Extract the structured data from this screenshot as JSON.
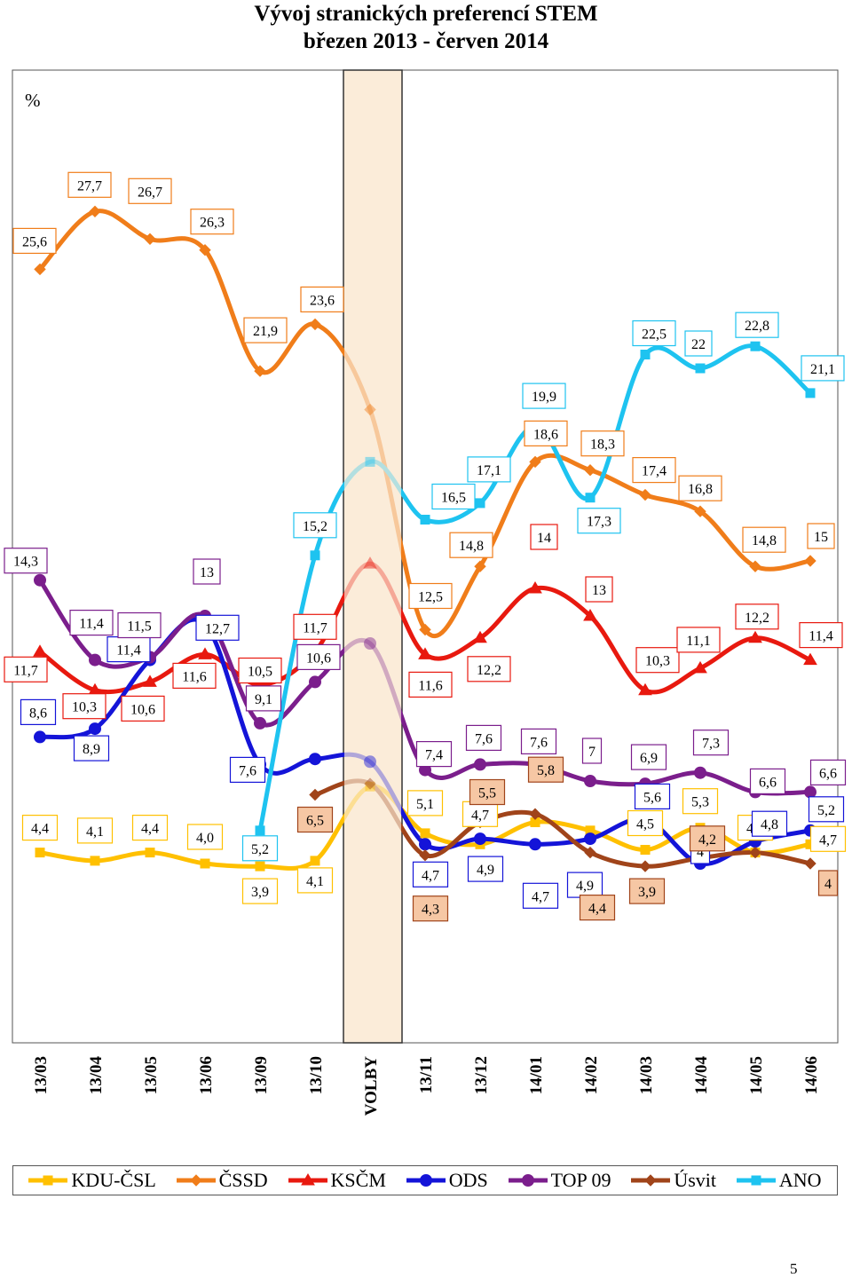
{
  "title_line1": "Vývoj stranických preferencí STEM",
  "title_line2": "březen 2013 - červen 2014",
  "page_number": "5",
  "chart_data": {
    "type": "line",
    "title": "Vývoj stranických preferencí STEM březen 2013 - červen 2014",
    "ylabel": "%",
    "ylim": [
      0,
      30
    ],
    "categories": [
      "13/03",
      "13/04",
      "13/05",
      "13/06",
      "13/09",
      "13/10",
      "VOLBY",
      "13/11",
      "13/12",
      "14/01",
      "14/02",
      "14/03",
      "14/04",
      "14/05",
      "14/06"
    ],
    "highlight_category": "VOLBY",
    "legend_position": "bottom",
    "grid": false,
    "series": [
      {
        "name": "KDU-ČSL",
        "color": "#ffc000",
        "marker": "square",
        "values": [
          4.4,
          4.1,
          4.4,
          4.0,
          3.9,
          4.1,
          6.8,
          5.1,
          4.7,
          5.5,
          5.2,
          4.5,
          5.3,
          4.4,
          4.7
        ],
        "labels": [
          "4,4",
          "4,1",
          "4,4",
          "4,0",
          "3,9",
          "4,1",
          null,
          "5,1",
          "4,7",
          null,
          null,
          "4,5",
          "5,3",
          "4,4",
          "4,7"
        ]
      },
      {
        "name": "ČSSD",
        "color": "#f07d1a",
        "marker": "diamond",
        "values": [
          25.6,
          27.7,
          26.7,
          26.3,
          21.9,
          23.6,
          20.5,
          12.5,
          14.8,
          18.6,
          18.3,
          17.4,
          16.8,
          14.8,
          15
        ],
        "labels": [
          "25,6",
          "27,7",
          "26,7",
          "26,3",
          "21,9",
          "23,6",
          null,
          "12,5",
          "14,8",
          "18,6",
          "18,3",
          "17,4",
          "16,8",
          "14,8",
          "15"
        ]
      },
      {
        "name": "KSČM",
        "color": "#e8190f",
        "marker": "triangle",
        "values": [
          11.7,
          10.3,
          10.6,
          11.6,
          10.5,
          11.7,
          14.9,
          11.6,
          12.2,
          14,
          13,
          10.3,
          11.1,
          12.2,
          11.4
        ],
        "labels": [
          "11,7",
          "10,3",
          "10,6",
          "11,6",
          "10,5",
          "11,7",
          null,
          "11,6",
          "12,2",
          "14",
          "13",
          "10,3",
          "11,1",
          "12,2",
          "11,4"
        ]
      },
      {
        "name": "ODS",
        "color": "#1414d8",
        "marker": "circle",
        "values": [
          8.6,
          8.9,
          11.4,
          12.7,
          7.6,
          7.8,
          7.7,
          4.7,
          4.9,
          4.7,
          4.9,
          5.6,
          4,
          4.8,
          5.2
        ],
        "labels": [
          "8,6",
          "8,9",
          "11,4",
          "12,7",
          "7,6",
          null,
          null,
          "4,7",
          "4,9",
          "4,7",
          "4,9",
          "5,6",
          "4",
          "4,8",
          "5,2"
        ]
      },
      {
        "name": "TOP 09",
        "color": "#7b1e8c",
        "marker": "circle",
        "values": [
          14.3,
          11.4,
          11.5,
          13,
          9.1,
          10.6,
          12.0,
          7.4,
          7.6,
          7.6,
          7,
          6.9,
          7.3,
          6.6,
          6.6
        ],
        "labels": [
          "14,3",
          "11,4",
          "11,5",
          "13",
          "9,1",
          "10,6",
          null,
          "7,4",
          "7,6",
          "7,6",
          "7",
          "6,9",
          "7,3",
          "6,6",
          "6,6"
        ]
      },
      {
        "name": "Úsvit",
        "color": "#a0441a",
        "marker": "diamond",
        "values": [
          null,
          null,
          null,
          null,
          null,
          6.5,
          6.9,
          4.3,
          5.5,
          5.8,
          4.4,
          3.9,
          4.2,
          4.4,
          4
        ],
        "labels": [
          null,
          null,
          null,
          null,
          null,
          "6,5",
          null,
          "4,3",
          "5,5",
          "5,8",
          "4,4",
          "3,9",
          "4,2",
          null,
          "4"
        ]
      },
      {
        "name": "ANO",
        "color": "#1ec3f0",
        "marker": "square",
        "values": [
          null,
          null,
          null,
          null,
          5.2,
          15.2,
          18.6,
          16.5,
          17.1,
          19.9,
          17.3,
          22.5,
          22,
          22.8,
          21.1
        ],
        "labels": [
          null,
          null,
          null,
          null,
          "5,2",
          "15,2",
          null,
          "16,5",
          "17,1",
          "19,9",
          "17,3",
          "22,5",
          "22",
          "22,8",
          "21,1"
        ]
      }
    ]
  }
}
